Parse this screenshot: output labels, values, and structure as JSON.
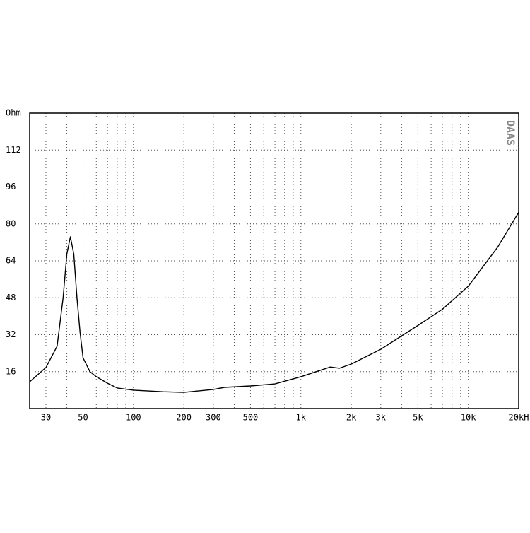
{
  "chart_data": {
    "type": "line",
    "watermark": "DAAS",
    "xscale": "log",
    "xlim": [
      24,
      20000
    ],
    "ylim": [
      0,
      128
    ],
    "xticks": [
      30,
      50,
      100,
      200,
      300,
      500,
      {
        "value": 1000,
        "label": "1k"
      },
      {
        "value": 2000,
        "label": "2k"
      },
      {
        "value": 3000,
        "label": "3k"
      },
      {
        "value": 5000,
        "label": "5k"
      },
      {
        "value": 10000,
        "label": "10k"
      },
      {
        "value": 20000,
        "label": "20kH"
      }
    ],
    "xminor": [
      40,
      60,
      70,
      80,
      90,
      400,
      600,
      700,
      800,
      900,
      4000,
      6000,
      7000,
      8000,
      9000
    ],
    "yticks": [
      {
        "value": 128,
        "label": "Ohm"
      },
      112,
      96,
      80,
      64,
      48,
      32,
      16
    ],
    "grid": true,
    "series": [
      {
        "color": "#000000",
        "x": [
          24,
          30,
          35,
          38,
          40,
          42,
          44,
          46,
          48,
          50,
          55,
          60,
          70,
          80,
          100,
          150,
          200,
          300,
          350,
          500,
          700,
          1000,
          1500,
          1700,
          2000,
          3000,
          5000,
          7000,
          10000,
          15000,
          20000
        ],
        "values": [
          11.6,
          17.8,
          27,
          48,
          67,
          74.4,
          67,
          48,
          33,
          22,
          16,
          13.8,
          11,
          8.9,
          8,
          7.3,
          7,
          8.3,
          9.2,
          9.8,
          10.7,
          13.8,
          18,
          17.5,
          19.3,
          25.7,
          36,
          43,
          53,
          70,
          85
        ]
      }
    ]
  }
}
